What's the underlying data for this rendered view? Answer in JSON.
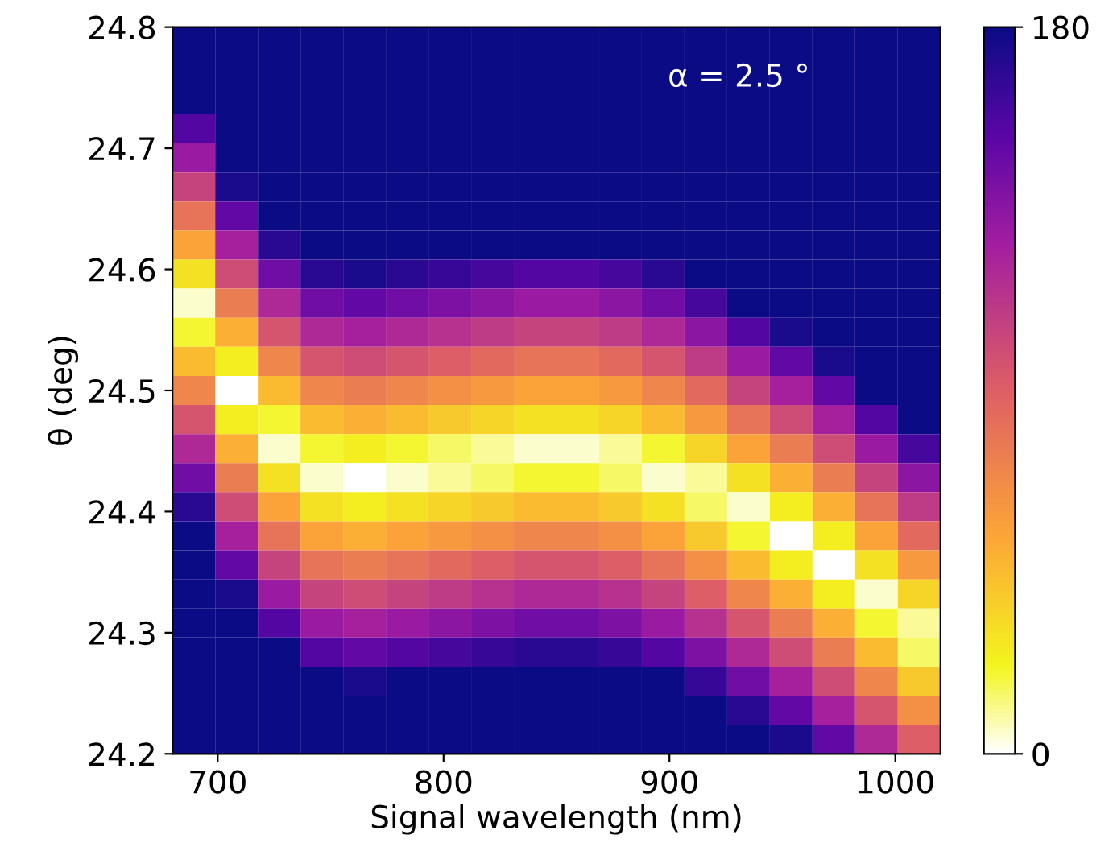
{
  "chart_data": {
    "type": "heatmap",
    "xlabel": "Signal wavelength (nm)",
    "ylabel": "θ (deg)",
    "annotations": [
      "α = 2.5 °"
    ],
    "cells": [
      [
        180,
        180,
        180,
        180,
        180,
        180,
        180,
        180,
        180,
        180,
        180,
        180,
        180,
        180,
        180,
        180,
        180,
        180
      ],
      [
        180,
        180,
        180,
        180,
        180,
        180,
        180,
        180,
        180,
        180,
        180,
        180,
        180,
        180,
        180,
        180,
        180,
        180
      ],
      [
        180,
        180,
        180,
        180,
        180,
        180,
        180,
        180,
        180,
        180,
        180,
        180,
        180,
        180,
        180,
        180,
        180,
        180
      ],
      [
        155,
        180,
        180,
        180,
        180,
        180,
        180,
        180,
        180,
        180,
        180,
        180,
        180,
        180,
        180,
        180,
        180,
        180
      ],
      [
        130,
        180,
        180,
        180,
        180,
        180,
        180,
        180,
        180,
        180,
        180,
        180,
        180,
        180,
        180,
        180,
        180,
        180
      ],
      [
        105,
        175,
        180,
        180,
        180,
        180,
        180,
        180,
        180,
        180,
        180,
        180,
        180,
        180,
        180,
        180,
        180,
        180
      ],
      [
        80,
        150,
        180,
        180,
        180,
        180,
        180,
        180,
        180,
        180,
        180,
        180,
        180,
        180,
        180,
        180,
        180,
        180
      ],
      [
        55,
        125,
        170,
        180,
        180,
        180,
        180,
        180,
        180,
        180,
        180,
        180,
        180,
        180,
        180,
        180,
        180,
        180
      ],
      [
        30,
        100,
        145,
        170,
        175,
        170,
        165,
        160,
        155,
        155,
        160,
        170,
        180,
        180,
        180,
        180,
        180,
        180
      ],
      [
        5,
        75,
        120,
        145,
        150,
        145,
        140,
        135,
        130,
        130,
        135,
        145,
        160,
        180,
        180,
        180,
        180,
        180
      ],
      [
        20,
        50,
        95,
        120,
        125,
        120,
        115,
        110,
        105,
        105,
        110,
        120,
        135,
        155,
        175,
        180,
        180,
        180
      ],
      [
        45,
        25,
        70,
        95,
        100,
        95,
        90,
        85,
        80,
        80,
        85,
        95,
        110,
        130,
        150,
        175,
        180,
        180
      ],
      [
        70,
        0,
        45,
        70,
        75,
        70,
        65,
        60,
        55,
        55,
        60,
        70,
        85,
        105,
        125,
        150,
        180,
        180
      ],
      [
        95,
        25,
        20,
        45,
        50,
        45,
        40,
        35,
        30,
        30,
        35,
        45,
        60,
        80,
        100,
        125,
        155,
        180
      ],
      [
        120,
        50,
        5,
        20,
        25,
        20,
        15,
        10,
        5,
        5,
        10,
        20,
        35,
        55,
        75,
        100,
        130,
        160
      ],
      [
        145,
        75,
        30,
        5,
        0,
        5,
        10,
        15,
        20,
        20,
        15,
        5,
        10,
        30,
        50,
        75,
        105,
        135
      ],
      [
        170,
        100,
        55,
        30,
        25,
        30,
        35,
        40,
        45,
        45,
        40,
        30,
        15,
        5,
        25,
        50,
        80,
        110
      ],
      [
        180,
        125,
        80,
        55,
        50,
        55,
        60,
        65,
        70,
        70,
        65,
        55,
        40,
        20,
        0,
        25,
        55,
        85
      ],
      [
        180,
        150,
        105,
        80,
        75,
        80,
        85,
        90,
        95,
        95,
        90,
        80,
        65,
        45,
        25,
        0,
        30,
        60
      ],
      [
        180,
        175,
        130,
        105,
        100,
        105,
        110,
        115,
        120,
        120,
        115,
        105,
        90,
        70,
        50,
        25,
        5,
        35
      ],
      [
        180,
        180,
        155,
        130,
        125,
        130,
        135,
        140,
        145,
        145,
        140,
        130,
        115,
        95,
        75,
        50,
        20,
        10
      ],
      [
        180,
        180,
        180,
        155,
        150,
        155,
        160,
        165,
        170,
        170,
        165,
        155,
        140,
        120,
        100,
        75,
        45,
        15
      ],
      [
        180,
        180,
        180,
        180,
        175,
        180,
        180,
        180,
        180,
        180,
        180,
        180,
        165,
        145,
        125,
        100,
        70,
        40
      ],
      [
        180,
        180,
        180,
        180,
        180,
        180,
        180,
        180,
        180,
        180,
        180,
        180,
        180,
        170,
        150,
        125,
        95,
        65
      ],
      [
        180,
        180,
        180,
        180,
        180,
        180,
        180,
        180,
        180,
        180,
        180,
        180,
        180,
        180,
        175,
        150,
        120,
        90
      ]
    ],
    "xlim": [
      680,
      1020
    ],
    "ylim": [
      24.2,
      24.8
    ],
    "xticks": [
      700,
      800,
      900,
      1000
    ],
    "yticks": [
      24.2,
      24.3,
      24.4,
      24.5,
      24.6,
      24.7,
      24.8
    ],
    "clim": [
      0,
      180
    ],
    "cticks": [
      0,
      180
    ]
  }
}
